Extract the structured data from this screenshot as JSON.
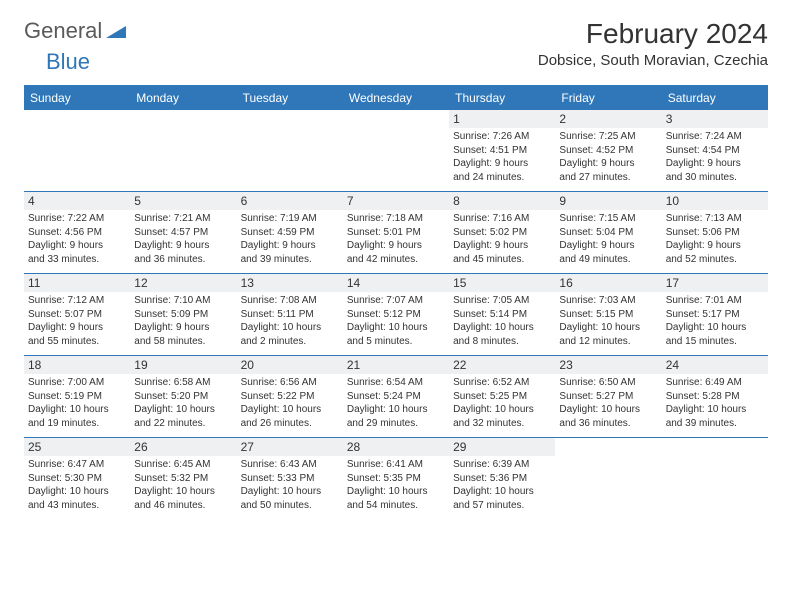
{
  "logo": {
    "text1": "General",
    "text2": "Blue"
  },
  "title": "February 2024",
  "location": "Dobsice, South Moravian, Czechia",
  "colors": {
    "brand_blue": "#2f77b8",
    "header_bg": "#2f77b8",
    "header_text": "#ffffff",
    "daynum_bg": "#eef0f2",
    "border": "#2f77b8",
    "text": "#333333",
    "logo_gray": "#5a5a5a"
  },
  "day_names": [
    "Sunday",
    "Monday",
    "Tuesday",
    "Wednesday",
    "Thursday",
    "Friday",
    "Saturday"
  ],
  "weeks": [
    [
      null,
      null,
      null,
      null,
      {
        "num": "1",
        "sr": "Sunrise: 7:26 AM",
        "ss": "Sunset: 4:51 PM",
        "d1": "Daylight: 9 hours",
        "d2": "and 24 minutes."
      },
      {
        "num": "2",
        "sr": "Sunrise: 7:25 AM",
        "ss": "Sunset: 4:52 PM",
        "d1": "Daylight: 9 hours",
        "d2": "and 27 minutes."
      },
      {
        "num": "3",
        "sr": "Sunrise: 7:24 AM",
        "ss": "Sunset: 4:54 PM",
        "d1": "Daylight: 9 hours",
        "d2": "and 30 minutes."
      }
    ],
    [
      {
        "num": "4",
        "sr": "Sunrise: 7:22 AM",
        "ss": "Sunset: 4:56 PM",
        "d1": "Daylight: 9 hours",
        "d2": "and 33 minutes."
      },
      {
        "num": "5",
        "sr": "Sunrise: 7:21 AM",
        "ss": "Sunset: 4:57 PM",
        "d1": "Daylight: 9 hours",
        "d2": "and 36 minutes."
      },
      {
        "num": "6",
        "sr": "Sunrise: 7:19 AM",
        "ss": "Sunset: 4:59 PM",
        "d1": "Daylight: 9 hours",
        "d2": "and 39 minutes."
      },
      {
        "num": "7",
        "sr": "Sunrise: 7:18 AM",
        "ss": "Sunset: 5:01 PM",
        "d1": "Daylight: 9 hours",
        "d2": "and 42 minutes."
      },
      {
        "num": "8",
        "sr": "Sunrise: 7:16 AM",
        "ss": "Sunset: 5:02 PM",
        "d1": "Daylight: 9 hours",
        "d2": "and 45 minutes."
      },
      {
        "num": "9",
        "sr": "Sunrise: 7:15 AM",
        "ss": "Sunset: 5:04 PM",
        "d1": "Daylight: 9 hours",
        "d2": "and 49 minutes."
      },
      {
        "num": "10",
        "sr": "Sunrise: 7:13 AM",
        "ss": "Sunset: 5:06 PM",
        "d1": "Daylight: 9 hours",
        "d2": "and 52 minutes."
      }
    ],
    [
      {
        "num": "11",
        "sr": "Sunrise: 7:12 AM",
        "ss": "Sunset: 5:07 PM",
        "d1": "Daylight: 9 hours",
        "d2": "and 55 minutes."
      },
      {
        "num": "12",
        "sr": "Sunrise: 7:10 AM",
        "ss": "Sunset: 5:09 PM",
        "d1": "Daylight: 9 hours",
        "d2": "and 58 minutes."
      },
      {
        "num": "13",
        "sr": "Sunrise: 7:08 AM",
        "ss": "Sunset: 5:11 PM",
        "d1": "Daylight: 10 hours",
        "d2": "and 2 minutes."
      },
      {
        "num": "14",
        "sr": "Sunrise: 7:07 AM",
        "ss": "Sunset: 5:12 PM",
        "d1": "Daylight: 10 hours",
        "d2": "and 5 minutes."
      },
      {
        "num": "15",
        "sr": "Sunrise: 7:05 AM",
        "ss": "Sunset: 5:14 PM",
        "d1": "Daylight: 10 hours",
        "d2": "and 8 minutes."
      },
      {
        "num": "16",
        "sr": "Sunrise: 7:03 AM",
        "ss": "Sunset: 5:15 PM",
        "d1": "Daylight: 10 hours",
        "d2": "and 12 minutes."
      },
      {
        "num": "17",
        "sr": "Sunrise: 7:01 AM",
        "ss": "Sunset: 5:17 PM",
        "d1": "Daylight: 10 hours",
        "d2": "and 15 minutes."
      }
    ],
    [
      {
        "num": "18",
        "sr": "Sunrise: 7:00 AM",
        "ss": "Sunset: 5:19 PM",
        "d1": "Daylight: 10 hours",
        "d2": "and 19 minutes."
      },
      {
        "num": "19",
        "sr": "Sunrise: 6:58 AM",
        "ss": "Sunset: 5:20 PM",
        "d1": "Daylight: 10 hours",
        "d2": "and 22 minutes."
      },
      {
        "num": "20",
        "sr": "Sunrise: 6:56 AM",
        "ss": "Sunset: 5:22 PM",
        "d1": "Daylight: 10 hours",
        "d2": "and 26 minutes."
      },
      {
        "num": "21",
        "sr": "Sunrise: 6:54 AM",
        "ss": "Sunset: 5:24 PM",
        "d1": "Daylight: 10 hours",
        "d2": "and 29 minutes."
      },
      {
        "num": "22",
        "sr": "Sunrise: 6:52 AM",
        "ss": "Sunset: 5:25 PM",
        "d1": "Daylight: 10 hours",
        "d2": "and 32 minutes."
      },
      {
        "num": "23",
        "sr": "Sunrise: 6:50 AM",
        "ss": "Sunset: 5:27 PM",
        "d1": "Daylight: 10 hours",
        "d2": "and 36 minutes."
      },
      {
        "num": "24",
        "sr": "Sunrise: 6:49 AM",
        "ss": "Sunset: 5:28 PM",
        "d1": "Daylight: 10 hours",
        "d2": "and 39 minutes."
      }
    ],
    [
      {
        "num": "25",
        "sr": "Sunrise: 6:47 AM",
        "ss": "Sunset: 5:30 PM",
        "d1": "Daylight: 10 hours",
        "d2": "and 43 minutes."
      },
      {
        "num": "26",
        "sr": "Sunrise: 6:45 AM",
        "ss": "Sunset: 5:32 PM",
        "d1": "Daylight: 10 hours",
        "d2": "and 46 minutes."
      },
      {
        "num": "27",
        "sr": "Sunrise: 6:43 AM",
        "ss": "Sunset: 5:33 PM",
        "d1": "Daylight: 10 hours",
        "d2": "and 50 minutes."
      },
      {
        "num": "28",
        "sr": "Sunrise: 6:41 AM",
        "ss": "Sunset: 5:35 PM",
        "d1": "Daylight: 10 hours",
        "d2": "and 54 minutes."
      },
      {
        "num": "29",
        "sr": "Sunrise: 6:39 AM",
        "ss": "Sunset: 5:36 PM",
        "d1": "Daylight: 10 hours",
        "d2": "and 57 minutes."
      },
      null,
      null
    ]
  ]
}
